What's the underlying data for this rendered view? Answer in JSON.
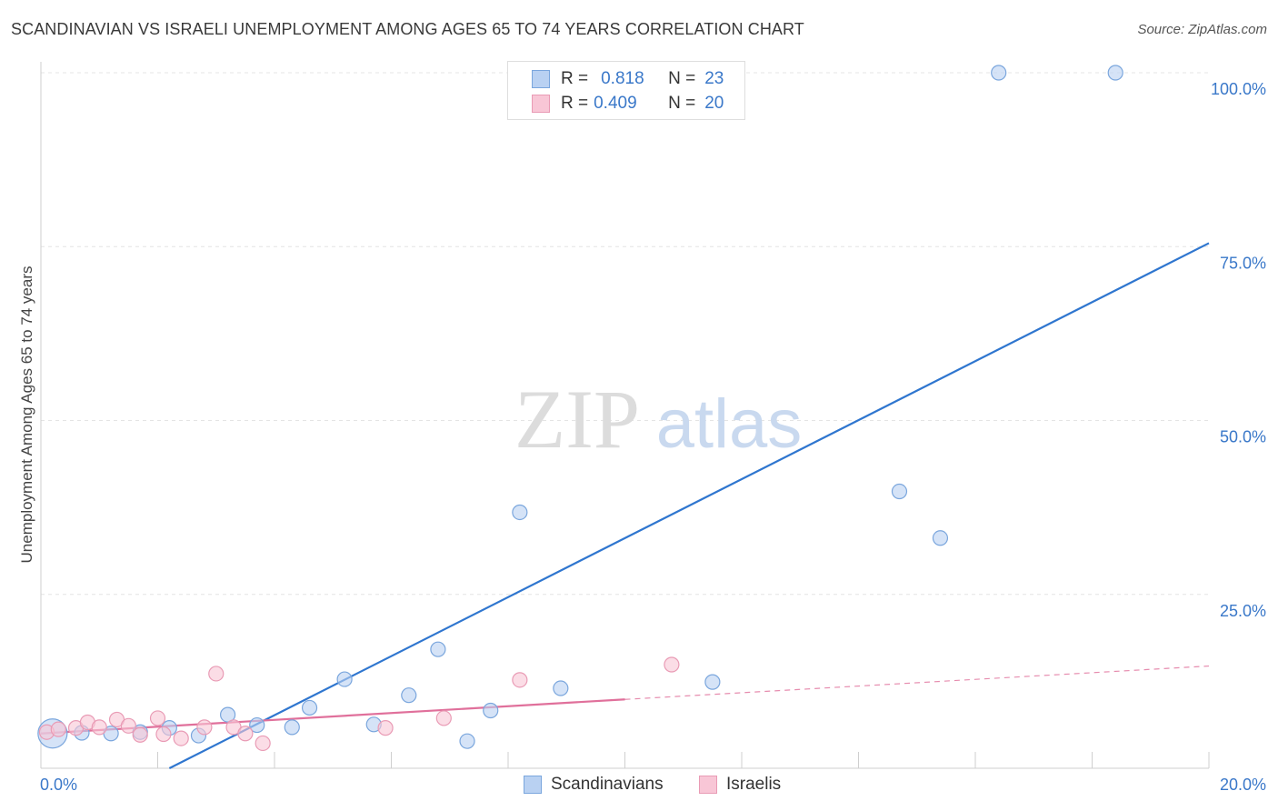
{
  "title": "SCANDINAVIAN VS ISRAELI UNEMPLOYMENT AMONG AGES 65 TO 74 YEARS CORRELATION CHART",
  "source": "Source: ZipAtlas.com",
  "watermark": {
    "zip": "ZIP",
    "atlas": "atlas"
  },
  "legend": {
    "rows": [
      {
        "r_label": "R =",
        "r_value": "0.818",
        "n_label": "N =",
        "n_value": "23"
      },
      {
        "r_label": "R =",
        "r_value": "0.409",
        "n_label": "N =",
        "n_value": "20"
      }
    ]
  },
  "colors": {
    "blue_fill": "#b9d1f2",
    "blue_stroke": "#7aa6dd",
    "blue_line": "#2f76cf",
    "pink_fill": "#f8c6d6",
    "pink_stroke": "#e99bb5",
    "pink_line": "#e0709b",
    "axis_text": "#3a78c9",
    "grid": "#e4e4e4"
  },
  "chart_data": {
    "type": "scatter",
    "title": "SCANDINAVIAN VS ISRAELI UNEMPLOYMENT AMONG AGES 65 TO 74 YEARS CORRELATION CHART",
    "xlabel": "",
    "ylabel": "Unemployment Among Ages 65 to 74 years",
    "xlim": [
      0,
      20
    ],
    "ylim": [
      0,
      100
    ],
    "x_tick_labels": [
      "0.0%",
      "20.0%"
    ],
    "y_ticks": [
      25,
      50,
      75,
      100
    ],
    "y_tick_labels": [
      "25.0%",
      "50.0%",
      "75.0%",
      "100.0%"
    ],
    "series": [
      {
        "name": "Scandinavians",
        "color": "blue",
        "points": [
          {
            "x": 0.2,
            "y": 5.0,
            "big": true
          },
          {
            "x": 0.7,
            "y": 5.1
          },
          {
            "x": 1.2,
            "y": 5.0
          },
          {
            "x": 1.7,
            "y": 5.2
          },
          {
            "x": 2.2,
            "y": 5.8
          },
          {
            "x": 2.7,
            "y": 4.7
          },
          {
            "x": 3.2,
            "y": 7.7
          },
          {
            "x": 3.7,
            "y": 6.2
          },
          {
            "x": 4.3,
            "y": 5.9
          },
          {
            "x": 4.6,
            "y": 8.7
          },
          {
            "x": 5.2,
            "y": 12.8
          },
          {
            "x": 5.7,
            "y": 6.3
          },
          {
            "x": 6.3,
            "y": 10.5
          },
          {
            "x": 6.8,
            "y": 17.1
          },
          {
            "x": 7.3,
            "y": 3.9
          },
          {
            "x": 7.7,
            "y": 8.3
          },
          {
            "x": 8.2,
            "y": 36.8
          },
          {
            "x": 8.9,
            "y": 11.5
          },
          {
            "x": 11.5,
            "y": 12.4
          },
          {
            "x": 14.7,
            "y": 39.8
          },
          {
            "x": 15.4,
            "y": 33.1
          },
          {
            "x": 16.4,
            "y": 100.0
          },
          {
            "x": 18.4,
            "y": 100.0
          }
        ],
        "trend": {
          "x": [
            2.2,
            20.0
          ],
          "y": [
            0.0,
            75.5
          ],
          "style": "solid"
        }
      },
      {
        "name": "Israelis",
        "color": "pink",
        "points": [
          {
            "x": 0.1,
            "y": 5.2
          },
          {
            "x": 0.3,
            "y": 5.6
          },
          {
            "x": 0.6,
            "y": 5.8
          },
          {
            "x": 0.8,
            "y": 6.6
          },
          {
            "x": 1.0,
            "y": 5.9
          },
          {
            "x": 1.3,
            "y": 7.0
          },
          {
            "x": 1.5,
            "y": 6.1
          },
          {
            "x": 1.7,
            "y": 4.8
          },
          {
            "x": 2.0,
            "y": 7.2
          },
          {
            "x": 2.1,
            "y": 4.9
          },
          {
            "x": 2.4,
            "y": 4.3
          },
          {
            "x": 2.8,
            "y": 5.9
          },
          {
            "x": 3.0,
            "y": 13.6
          },
          {
            "x": 3.3,
            "y": 5.9
          },
          {
            "x": 3.5,
            "y": 5.0
          },
          {
            "x": 3.8,
            "y": 3.6
          },
          {
            "x": 5.9,
            "y": 5.8
          },
          {
            "x": 6.9,
            "y": 7.2
          },
          {
            "x": 8.2,
            "y": 12.7
          },
          {
            "x": 10.8,
            "y": 14.9
          }
        ],
        "trend": {
          "x": [
            0.0,
            10.0
          ],
          "y": [
            5.0,
            9.9
          ],
          "style": "solid",
          "extension": {
            "x": [
              10.0,
              20.0
            ],
            "y": [
              9.9,
              14.7
            ],
            "style": "dashed"
          }
        }
      }
    ]
  },
  "bottom_legend": [
    {
      "label": "Scandinavians",
      "color": "blue"
    },
    {
      "label": "Israelis",
      "color": "pink"
    }
  ]
}
